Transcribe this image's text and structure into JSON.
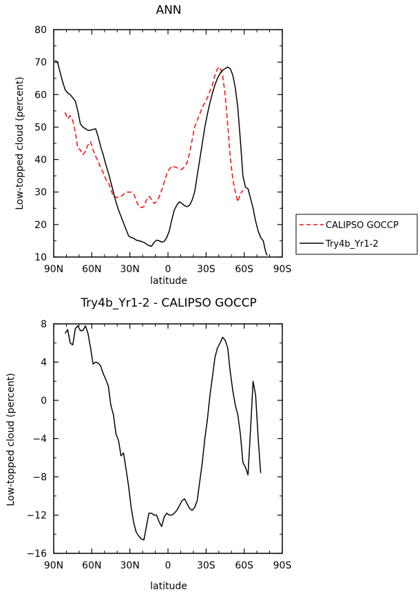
{
  "chart_data": [
    {
      "type": "line",
      "title": "ANN",
      "xlabel": "latitude",
      "ylabel": "Low-topped cloud (percent)",
      "xlim": [
        90,
        -90
      ],
      "ylim": [
        10,
        80
      ],
      "x_ticks": [
        90,
        60,
        30,
        0,
        -30,
        -60,
        -90
      ],
      "x_tick_labels": [
        "90N",
        "60N",
        "30N",
        "0",
        "30S",
        "60S",
        "90S"
      ],
      "y_ticks": [
        10,
        20,
        30,
        40,
        50,
        60,
        70,
        80
      ],
      "y_tick_labels": [
        "10",
        "20",
        "30",
        "40",
        "50",
        "60",
        "70",
        "80"
      ],
      "legend_position": "right",
      "series": [
        {
          "name": "CALIPSO GOCCP",
          "color": "#ff0000",
          "dash": true,
          "points": [
            [
              81,
              54.5
            ],
            [
              79,
              52.5
            ],
            [
              77,
              53.5
            ],
            [
              75,
              52
            ],
            [
              73,
              48.5
            ],
            [
              71,
              43.5
            ],
            [
              69,
              43
            ],
            [
              67,
              41.5
            ],
            [
              65,
              42.5
            ],
            [
              63,
              44.5
            ],
            [
              61,
              45.5
            ],
            [
              59,
              43
            ],
            [
              57,
              41
            ],
            [
              55,
              39.5
            ],
            [
              53,
              37.5
            ],
            [
              51,
              36
            ],
            [
              49,
              34
            ],
            [
              47,
              33
            ],
            [
              45,
              31
            ],
            [
              43,
              28.5
            ],
            [
              41,
              28.5
            ],
            [
              39,
              28.3
            ],
            [
              37,
              28.7
            ],
            [
              35,
              29.3
            ],
            [
              33,
              30
            ],
            [
              31,
              30
            ],
            [
              29,
              30
            ],
            [
              27,
              29.5
            ],
            [
              25,
              27.5
            ],
            [
              23,
              25.5
            ],
            [
              21,
              25.2
            ],
            [
              19,
              25.5
            ],
            [
              17,
              27.5
            ],
            [
              15,
              28.7
            ],
            [
              13,
              27.8
            ],
            [
              11,
              26.5
            ],
            [
              9,
              27
            ],
            [
              7,
              28.5
            ],
            [
              5,
              30.5
            ],
            [
              3,
              33
            ],
            [
              1,
              35.5
            ],
            [
              -1,
              37
            ],
            [
              -3,
              38
            ],
            [
              -5,
              37.8
            ],
            [
              -7,
              37.5
            ],
            [
              -9,
              37
            ],
            [
              -11,
              37
            ],
            [
              -13,
              37.8
            ],
            [
              -15,
              39
            ],
            [
              -17,
              42
            ],
            [
              -19,
              46
            ],
            [
              -21,
              50
            ],
            [
              -23,
              52
            ],
            [
              -25,
              54
            ],
            [
              -27,
              56
            ],
            [
              -29,
              57.5
            ],
            [
              -31,
              59
            ],
            [
              -33,
              61
            ],
            [
              -35,
              63
            ],
            [
              -37,
              66
            ],
            [
              -39,
              68
            ],
            [
              -41,
              68.5
            ],
            [
              -43,
              66
            ],
            [
              -45,
              60
            ],
            [
              -47,
              51
            ],
            [
              -49,
              41
            ],
            [
              -51,
              34
            ],
            [
              -53,
              30
            ],
            [
              -55,
              27
            ],
            [
              -57,
              29.5
            ],
            [
              -59,
              30.5
            ]
          ]
        },
        {
          "name": "Try4b_Yr1-2",
          "color": "#000000",
          "dash": false,
          "points": [
            [
              89,
              70.5
            ],
            [
              87,
              70
            ],
            [
              85,
              67
            ],
            [
              83,
              64
            ],
            [
              81,
              61.5
            ],
            [
              79,
              60.5
            ],
            [
              77,
              60
            ],
            [
              75,
              59
            ],
            [
              73,
              58
            ],
            [
              71,
              55
            ],
            [
              69,
              51
            ],
            [
              67,
              50
            ],
            [
              65,
              49.5
            ],
            [
              63,
              49
            ],
            [
              61,
              49
            ],
            [
              59,
              49.3
            ],
            [
              57,
              49.5
            ],
            [
              55,
              47
            ],
            [
              53,
              44
            ],
            [
              51,
              41.5
            ],
            [
              49,
              38.5
            ],
            [
              47,
              36
            ],
            [
              45,
              33
            ],
            [
              43,
              30
            ],
            [
              41,
              27
            ],
            [
              39,
              24.5
            ],
            [
              37,
              22.5
            ],
            [
              35,
              20.5
            ],
            [
              33,
              18.5
            ],
            [
              31,
              16.5
            ],
            [
              29,
              16
            ],
            [
              27,
              15.8
            ],
            [
              25,
              15.2
            ],
            [
              23,
              15
            ],
            [
              21,
              14.8
            ],
            [
              19,
              14.5
            ],
            [
              17,
              14
            ],
            [
              15,
              13.5
            ],
            [
              13,
              13.3
            ],
            [
              11,
              14.5
            ],
            [
              9,
              15.2
            ],
            [
              7,
              15
            ],
            [
              5,
              14.6
            ],
            [
              3,
              14.8
            ],
            [
              1,
              16
            ],
            [
              -1,
              18
            ],
            [
              -3,
              21.5
            ],
            [
              -5,
              24.5
            ],
            [
              -7,
              26
            ],
            [
              -9,
              27
            ],
            [
              -11,
              26.5
            ],
            [
              -13,
              25.8
            ],
            [
              -15,
              25.5
            ],
            [
              -17,
              26
            ],
            [
              -19,
              27.5
            ],
            [
              -21,
              30
            ],
            [
              -23,
              35
            ],
            [
              -25,
              40
            ],
            [
              -27,
              45
            ],
            [
              -29,
              50
            ],
            [
              -31,
              54
            ],
            [
              -33,
              57.5
            ],
            [
              -35,
              60.5
            ],
            [
              -37,
              63
            ],
            [
              -39,
              65
            ],
            [
              -41,
              66.5
            ],
            [
              -43,
              67.5
            ],
            [
              -45,
              68
            ],
            [
              -47,
              68.5
            ],
            [
              -49,
              68
            ],
            [
              -51,
              66
            ],
            [
              -53,
              62
            ],
            [
              -55,
              56
            ],
            [
              -57,
              46
            ],
            [
              -59,
              35
            ],
            [
              -61,
              31.5
            ],
            [
              -63,
              31
            ],
            [
              -65,
              28
            ],
            [
              -67,
              25
            ],
            [
              -69,
              21
            ],
            [
              -71,
              18
            ],
            [
              -73,
              16
            ],
            [
              -75,
              15
            ],
            [
              -77,
              11.5
            ],
            [
              -78,
              10.5
            ]
          ]
        }
      ]
    },
    {
      "type": "line",
      "title": "Try4b_Yr1-2 - CALIPSO GOCCP",
      "xlabel": "latitude",
      "ylabel": "Low-topped cloud (percent)",
      "xlim": [
        90,
        -90
      ],
      "ylim": [
        -16,
        8
      ],
      "x_ticks": [
        90,
        60,
        30,
        0,
        -30,
        -60,
        -90
      ],
      "x_tick_labels": [
        "90N",
        "60N",
        "30N",
        "0",
        "30S",
        "60S",
        "90S"
      ],
      "y_ticks": [
        -16,
        -12,
        -8,
        -4,
        0,
        4,
        8
      ],
      "y_tick_labels": [
        "−16",
        "−12",
        "−8",
        "−4",
        "0",
        "4",
        "8"
      ],
      "series": [
        {
          "name": "",
          "color": "#000000",
          "dash": false,
          "points": [
            [
              81,
              7
            ],
            [
              79,
              7.4
            ],
            [
              77,
              6
            ],
            [
              75,
              5.8
            ],
            [
              73,
              7.5
            ],
            [
              71,
              7.8
            ],
            [
              69,
              7.3
            ],
            [
              67,
              7.3
            ],
            [
              65,
              7.8
            ],
            [
              63,
              7
            ],
            [
              61,
              5.5
            ],
            [
              59,
              3.8
            ],
            [
              57,
              4
            ],
            [
              55,
              3.9
            ],
            [
              53,
              3.6
            ],
            [
              51,
              2.8
            ],
            [
              49,
              2.2
            ],
            [
              47,
              1.5
            ],
            [
              45,
              -0.5
            ],
            [
              43,
              -1.5
            ],
            [
              41,
              -3.5
            ],
            [
              39,
              -4.2
            ],
            [
              37,
              -5.8
            ],
            [
              35,
              -5.5
            ],
            [
              33,
              -7.2
            ],
            [
              31,
              -9
            ],
            [
              29,
              -11.2
            ],
            [
              27,
              -12.8
            ],
            [
              25,
              -13.8
            ],
            [
              23,
              -14.2
            ],
            [
              21,
              -14.5
            ],
            [
              19,
              -14.6
            ],
            [
              17,
              -13.2
            ],
            [
              15,
              -11.8
            ],
            [
              13,
              -11.8
            ],
            [
              11,
              -12
            ],
            [
              9,
              -12
            ],
            [
              7,
              -12.7
            ],
            [
              5,
              -13.2
            ],
            [
              3,
              -12.2
            ],
            [
              1,
              -11.8
            ],
            [
              -1,
              -12
            ],
            [
              -3,
              -12
            ],
            [
              -5,
              -11.8
            ],
            [
              -7,
              -11.5
            ],
            [
              -9,
              -11
            ],
            [
              -11,
              -10.5
            ],
            [
              -13,
              -10.3
            ],
            [
              -15,
              -10.8
            ],
            [
              -17,
              -11.3
            ],
            [
              -19,
              -11.5
            ],
            [
              -21,
              -11.2
            ],
            [
              -23,
              -10.5
            ],
            [
              -25,
              -8.5
            ],
            [
              -27,
              -6.5
            ],
            [
              -29,
              -4
            ],
            [
              -31,
              -2
            ],
            [
              -33,
              0.5
            ],
            [
              -35,
              2.5
            ],
            [
              -37,
              4.5
            ],
            [
              -39,
              5.5
            ],
            [
              -41,
              6
            ],
            [
              -43,
              6.6
            ],
            [
              -45,
              6.3
            ],
            [
              -47,
              5.5
            ],
            [
              -49,
              3
            ],
            [
              -51,
              1
            ],
            [
              -53,
              -0.5
            ],
            [
              -55,
              -1.5
            ],
            [
              -57,
              -3.5
            ],
            [
              -59,
              -6.5
            ],
            [
              -61,
              -7
            ],
            [
              -63,
              -7.8
            ],
            [
              -65,
              -3
            ],
            [
              -67,
              2
            ],
            [
              -69,
              0.5
            ],
            [
              -71,
              -4
            ],
            [
              -73,
              -7.6
            ]
          ]
        }
      ]
    }
  ]
}
